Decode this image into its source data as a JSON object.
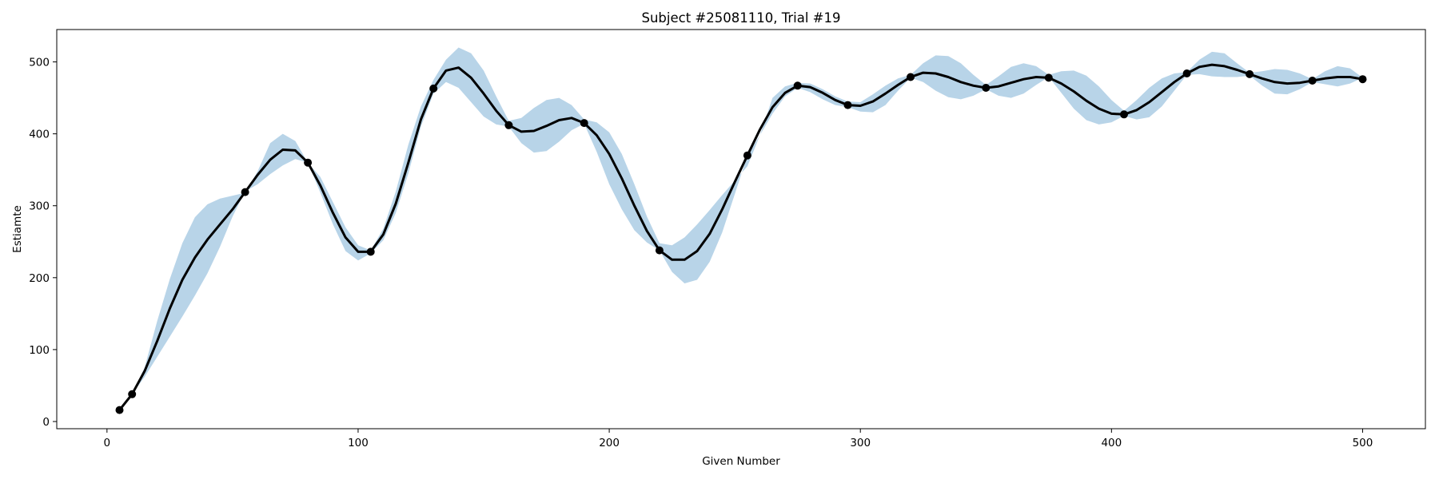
{
  "chart_data": {
    "type": "line",
    "title": "Subject #25081110, Trial #19",
    "xlabel": "Given Number",
    "ylabel": "Estiamte",
    "xlim": [
      -20,
      525
    ],
    "ylim": [
      -10,
      545
    ],
    "xticks": [
      0,
      100,
      200,
      300,
      400,
      500
    ],
    "yticks": [
      0,
      100,
      200,
      300,
      400,
      500
    ],
    "grid": false,
    "band_color": "#b8d4e8",
    "line_color": "#000000",
    "series": [
      {
        "values_line": [
          [
            5,
            16
          ],
          [
            10,
            38
          ],
          [
            15,
            70
          ],
          [
            20,
            112
          ],
          [
            25,
            157
          ],
          [
            30,
            197
          ],
          [
            35,
            228
          ],
          [
            40,
            253
          ],
          [
            45,
            274
          ],
          [
            50,
            295
          ],
          [
            55,
            319
          ],
          [
            60,
            343
          ],
          [
            65,
            364
          ],
          [
            70,
            378
          ],
          [
            75,
            377
          ],
          [
            80,
            360
          ],
          [
            85,
            328
          ],
          [
            90,
            290
          ],
          [
            95,
            256
          ],
          [
            100,
            236
          ],
          [
            105,
            236
          ],
          [
            110,
            260
          ],
          [
            115,
            303
          ],
          [
            120,
            360
          ],
          [
            125,
            420
          ],
          [
            130,
            463
          ],
          [
            135,
            488
          ],
          [
            140,
            492
          ],
          [
            145,
            478
          ],
          [
            150,
            456
          ],
          [
            155,
            432
          ],
          [
            160,
            412
          ],
          [
            165,
            403
          ],
          [
            170,
            404
          ],
          [
            175,
            411
          ],
          [
            180,
            419
          ],
          [
            185,
            422
          ],
          [
            190,
            415
          ],
          [
            195,
            398
          ],
          [
            200,
            372
          ],
          [
            205,
            338
          ],
          [
            210,
            300
          ],
          [
            215,
            265
          ],
          [
            220,
            238
          ],
          [
            225,
            225
          ],
          [
            230,
            225
          ],
          [
            235,
            237
          ],
          [
            240,
            261
          ],
          [
            245,
            295
          ],
          [
            250,
            333
          ],
          [
            255,
            370
          ],
          [
            260,
            406
          ],
          [
            265,
            437
          ],
          [
            270,
            457
          ],
          [
            275,
            467
          ],
          [
            280,
            465
          ],
          [
            285,
            457
          ],
          [
            290,
            447
          ],
          [
            295,
            440
          ],
          [
            300,
            439
          ],
          [
            305,
            445
          ],
          [
            310,
            456
          ],
          [
            315,
            468
          ],
          [
            320,
            479
          ],
          [
            325,
            485
          ],
          [
            330,
            484
          ],
          [
            335,
            479
          ],
          [
            340,
            472
          ],
          [
            345,
            467
          ],
          [
            350,
            464
          ],
          [
            355,
            466
          ],
          [
            360,
            471
          ],
          [
            365,
            476
          ],
          [
            370,
            479
          ],
          [
            375,
            478
          ],
          [
            380,
            470
          ],
          [
            385,
            459
          ],
          [
            390,
            446
          ],
          [
            395,
            435
          ],
          [
            400,
            428
          ],
          [
            405,
            427
          ],
          [
            410,
            433
          ],
          [
            415,
            444
          ],
          [
            420,
            458
          ],
          [
            425,
            472
          ],
          [
            430,
            484
          ],
          [
            435,
            493
          ],
          [
            440,
            496
          ],
          [
            445,
            494
          ],
          [
            450,
            489
          ],
          [
            455,
            483
          ],
          [
            460,
            477
          ],
          [
            465,
            472
          ],
          [
            470,
            470
          ],
          [
            475,
            471
          ],
          [
            480,
            474
          ],
          [
            485,
            477
          ],
          [
            490,
            479
          ],
          [
            495,
            479
          ],
          [
            500,
            476
          ]
        ],
        "markers": [
          [
            5,
            16
          ],
          [
            10,
            38
          ],
          [
            55,
            319
          ],
          [
            80,
            360
          ],
          [
            105,
            236
          ],
          [
            130,
            463
          ],
          [
            160,
            412
          ],
          [
            190,
            415
          ],
          [
            220,
            238
          ],
          [
            255,
            370
          ],
          [
            275,
            467
          ],
          [
            295,
            440
          ],
          [
            320,
            479
          ],
          [
            350,
            464
          ],
          [
            375,
            478
          ],
          [
            405,
            427
          ],
          [
            430,
            484
          ],
          [
            455,
            483
          ],
          [
            480,
            474
          ],
          [
            500,
            476
          ]
        ],
        "band_upper": [
          [
            10,
            38
          ],
          [
            15,
            75
          ],
          [
            20,
            140
          ],
          [
            25,
            198
          ],
          [
            30,
            248
          ],
          [
            35,
            284
          ],
          [
            40,
            302
          ],
          [
            45,
            310
          ],
          [
            50,
            314
          ],
          [
            55,
            318
          ],
          [
            60,
            348
          ],
          [
            65,
            387
          ],
          [
            70,
            400
          ],
          [
            75,
            390
          ],
          [
            80,
            360
          ],
          [
            85,
            340
          ],
          [
            90,
            305
          ],
          [
            95,
            270
          ],
          [
            100,
            245
          ],
          [
            105,
            238
          ],
          [
            110,
            268
          ],
          [
            115,
            320
          ],
          [
            120,
            385
          ],
          [
            125,
            438
          ],
          [
            130,
            475
          ],
          [
            135,
            503
          ],
          [
            140,
            520
          ],
          [
            145,
            512
          ],
          [
            150,
            488
          ],
          [
            155,
            452
          ],
          [
            160,
            418
          ],
          [
            165,
            422
          ],
          [
            170,
            436
          ],
          [
            175,
            447
          ],
          [
            180,
            450
          ],
          [
            185,
            440
          ],
          [
            190,
            420
          ],
          [
            195,
            416
          ],
          [
            200,
            402
          ],
          [
            205,
            372
          ],
          [
            210,
            330
          ],
          [
            215,
            285
          ],
          [
            220,
            248
          ],
          [
            225,
            245
          ],
          [
            230,
            256
          ],
          [
            235,
            274
          ],
          [
            240,
            294
          ],
          [
            245,
            315
          ],
          [
            250,
            335
          ],
          [
            255,
            355
          ],
          [
            260,
            398
          ],
          [
            265,
            450
          ],
          [
            270,
            466
          ],
          [
            275,
            471
          ],
          [
            280,
            470
          ],
          [
            285,
            462
          ],
          [
            290,
            452
          ],
          [
            295,
            445
          ],
          [
            300,
            444
          ],
          [
            305,
            455
          ],
          [
            310,
            467
          ],
          [
            315,
            477
          ],
          [
            320,
            482
          ],
          [
            325,
            498
          ],
          [
            330,
            509
          ],
          [
            335,
            508
          ],
          [
            340,
            498
          ],
          [
            345,
            482
          ],
          [
            350,
            468
          ],
          [
            355,
            480
          ],
          [
            360,
            493
          ],
          [
            365,
            498
          ],
          [
            370,
            494
          ],
          [
            375,
            482
          ],
          [
            380,
            487
          ],
          [
            385,
            488
          ],
          [
            390,
            481
          ],
          [
            395,
            466
          ],
          [
            400,
            447
          ],
          [
            405,
            432
          ],
          [
            410,
            447
          ],
          [
            415,
            464
          ],
          [
            420,
            477
          ],
          [
            425,
            484
          ],
          [
            430,
            486
          ],
          [
            435,
            503
          ],
          [
            440,
            514
          ],
          [
            445,
            512
          ],
          [
            450,
            498
          ],
          [
            455,
            485
          ],
          [
            460,
            487
          ],
          [
            465,
            490
          ],
          [
            470,
            489
          ],
          [
            475,
            484
          ],
          [
            480,
            476
          ],
          [
            485,
            487
          ],
          [
            490,
            494
          ],
          [
            495,
            491
          ],
          [
            500,
            478
          ]
        ],
        "band_lower": [
          [
            10,
            38
          ],
          [
            15,
            62
          ],
          [
            20,
            90
          ],
          [
            25,
            118
          ],
          [
            30,
            146
          ],
          [
            35,
            175
          ],
          [
            40,
            206
          ],
          [
            45,
            243
          ],
          [
            50,
            285
          ],
          [
            55,
            320
          ],
          [
            60,
            330
          ],
          [
            65,
            344
          ],
          [
            70,
            356
          ],
          [
            75,
            365
          ],
          [
            80,
            360
          ],
          [
            85,
            318
          ],
          [
            90,
            274
          ],
          [
            95,
            237
          ],
          [
            100,
            224
          ],
          [
            105,
            234
          ],
          [
            110,
            252
          ],
          [
            115,
            290
          ],
          [
            120,
            345
          ],
          [
            125,
            410
          ],
          [
            130,
            456
          ],
          [
            135,
            472
          ],
          [
            140,
            464
          ],
          [
            145,
            444
          ],
          [
            150,
            424
          ],
          [
            155,
            413
          ],
          [
            160,
            410
          ],
          [
            165,
            387
          ],
          [
            170,
            374
          ],
          [
            175,
            376
          ],
          [
            180,
            389
          ],
          [
            185,
            405
          ],
          [
            190,
            414
          ],
          [
            195,
            375
          ],
          [
            200,
            330
          ],
          [
            205,
            295
          ],
          [
            210,
            266
          ],
          [
            215,
            249
          ],
          [
            220,
            238
          ],
          [
            225,
            208
          ],
          [
            230,
            192
          ],
          [
            235,
            197
          ],
          [
            240,
            222
          ],
          [
            245,
            263
          ],
          [
            250,
            316
          ],
          [
            255,
            370
          ],
          [
            260,
            398
          ],
          [
            265,
            428
          ],
          [
            270,
            452
          ],
          [
            275,
            464
          ],
          [
            280,
            458
          ],
          [
            285,
            448
          ],
          [
            290,
            440
          ],
          [
            295,
            437
          ],
          [
            300,
            431
          ],
          [
            305,
            430
          ],
          [
            310,
            440
          ],
          [
            315,
            460
          ],
          [
            320,
            478
          ],
          [
            325,
            472
          ],
          [
            330,
            460
          ],
          [
            335,
            451
          ],
          [
            340,
            448
          ],
          [
            345,
            453
          ],
          [
            350,
            462
          ],
          [
            355,
            453
          ],
          [
            360,
            450
          ],
          [
            365,
            456
          ],
          [
            370,
            468
          ],
          [
            375,
            479
          ],
          [
            380,
            457
          ],
          [
            385,
            435
          ],
          [
            390,
            419
          ],
          [
            395,
            413
          ],
          [
            400,
            416
          ],
          [
            405,
            425
          ],
          [
            410,
            420
          ],
          [
            415,
            423
          ],
          [
            420,
            438
          ],
          [
            425,
            460
          ],
          [
            430,
            482
          ],
          [
            435,
            483
          ],
          [
            440,
            480
          ],
          [
            445,
            479
          ],
          [
            450,
            479
          ],
          [
            455,
            481
          ],
          [
            460,
            467
          ],
          [
            465,
            456
          ],
          [
            470,
            455
          ],
          [
            475,
            462
          ],
          [
            480,
            472
          ],
          [
            485,
            469
          ],
          [
            490,
            466
          ],
          [
            495,
            470
          ],
          [
            500,
            478
          ]
        ]
      }
    ]
  }
}
